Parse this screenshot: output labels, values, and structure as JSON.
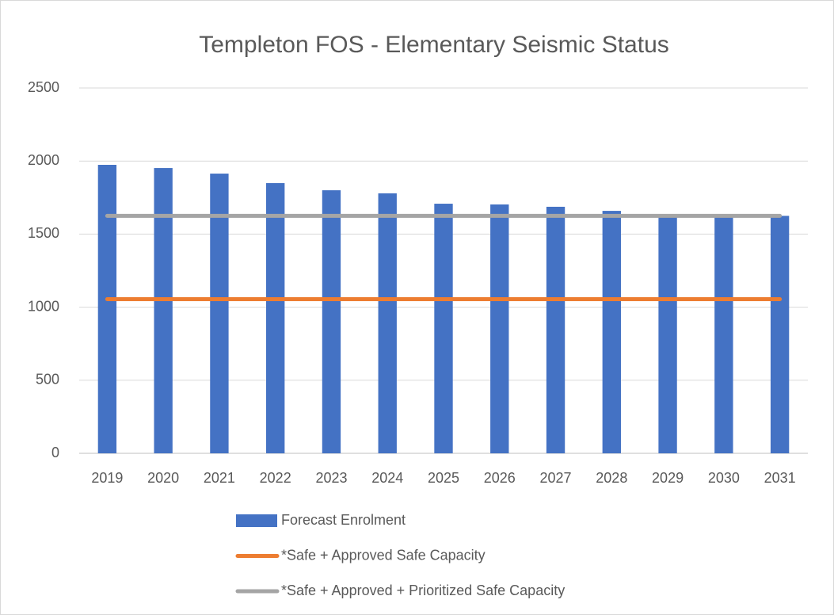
{
  "chart_data": {
    "type": "bar",
    "title": "Templeton FOS - Elementary Seismic Status",
    "categories": [
      "2019",
      "2020",
      "2021",
      "2022",
      "2023",
      "2024",
      "2025",
      "2026",
      "2027",
      "2028",
      "2029",
      "2030",
      "2031"
    ],
    "series": [
      {
        "name": "Forecast Enrolment",
        "type": "bar",
        "color": "#4472c4",
        "values": [
          1974,
          1952,
          1914,
          1849,
          1800,
          1779,
          1708,
          1703,
          1687,
          1659,
          1635,
          1630,
          1625
        ]
      },
      {
        "name": "*Safe + Approved Safe Capacity",
        "type": "line",
        "color": "#ed7d31",
        "values": [
          1055,
          1055,
          1055,
          1055,
          1055,
          1055,
          1055,
          1055,
          1055,
          1055,
          1055,
          1055,
          1055
        ]
      },
      {
        "name": "*Safe + Approved + Prioritized Safe Capacity",
        "type": "line",
        "color": "#a5a5a5",
        "values": [
          1625,
          1625,
          1625,
          1625,
          1625,
          1625,
          1625,
          1625,
          1625,
          1625,
          1625,
          1625,
          1625
        ]
      }
    ],
    "ylim": [
      0,
      2500
    ],
    "yticks": [
      0,
      500,
      1000,
      1500,
      2000,
      2500
    ],
    "grid": true,
    "legend": "bottom"
  }
}
